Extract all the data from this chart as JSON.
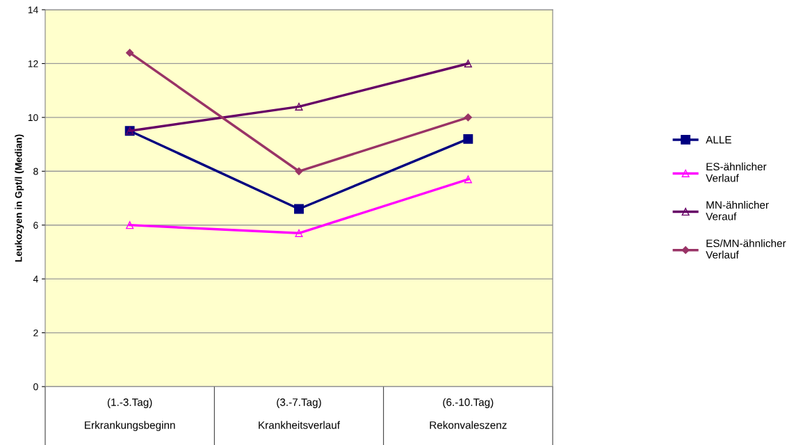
{
  "chart_data": {
    "type": "line",
    "ylabel": "Leukozyen in Gpt/l (Median)",
    "categories": [
      "(1.-3.Tag)\nErkrankungsbeginn",
      "(3.-7.Tag)\nKrankheitsverlauf",
      "(6.-10.Tag)\nRekonvaleszenz"
    ],
    "series": [
      {
        "name": "ALLE",
        "color": "#000080",
        "marker": "square",
        "values": [
          9.5,
          6.6,
          9.2
        ]
      },
      {
        "name": "ES-ähnlicher\nVerlauf",
        "color": "#ff00ff",
        "marker": "triangle",
        "values": [
          6.0,
          5.7,
          7.7
        ]
      },
      {
        "name": "MN-ähnlicher\nVerauf",
        "color": "#660066",
        "marker": "triangle",
        "values": [
          9.5,
          10.4,
          12.0
        ]
      },
      {
        "name": "ES/MN-ähnlicher\nVerlauf",
        "color": "#993366",
        "marker": "diamond",
        "values": [
          12.4,
          8.0,
          10.0
        ]
      }
    ],
    "ylim": [
      0,
      14
    ],
    "yticks": [
      0,
      2,
      4,
      6,
      8,
      10,
      12,
      14
    ],
    "grid": "y",
    "legend": "right",
    "line_style": "solid"
  }
}
